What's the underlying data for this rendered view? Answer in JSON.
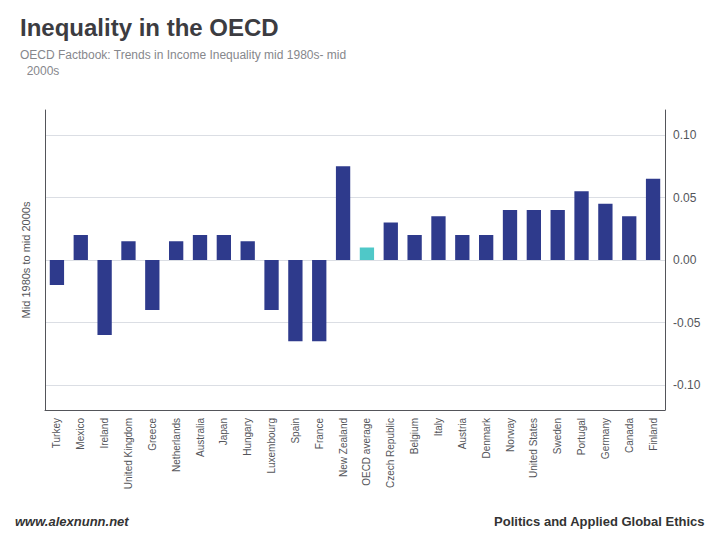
{
  "chart_data": {
    "type": "bar",
    "title": "Inequality in the OECD",
    "subtitle": "OECD Factbook: Trends in Income Inequality mid 1980s- mid\n  2000s",
    "ylabel": "Mid 1980s to mid 2000s",
    "categories": [
      "Turkey",
      "Mexico",
      "Ireland",
      "United Kingdom",
      "Greece",
      "Netherlands",
      "Australia",
      "Japan",
      "Hungary",
      "Luxembourg",
      "Spain",
      "France",
      "New Zealand",
      "OECD average",
      "Czech Republic",
      "Belgium",
      "Italy",
      "Austria",
      "Denmark",
      "Norway",
      "United States",
      "Sweden",
      "Portugal",
      "Germany",
      "Canada",
      "Finland"
    ],
    "values": [
      -0.02,
      0.02,
      -0.06,
      0.015,
      -0.04,
      0.015,
      0.02,
      0.02,
      0.015,
      -0.04,
      -0.065,
      -0.065,
      0.075,
      0.01,
      0.03,
      0.02,
      0.035,
      0.02,
      0.02,
      0.04,
      0.04,
      0.04,
      0.055,
      0.045,
      0.035,
      0.065
    ],
    "colors": [
      "#2e3a8c",
      "#2e3a8c",
      "#2e3a8c",
      "#2e3a8c",
      "#2e3a8c",
      "#2e3a8c",
      "#2e3a8c",
      "#2e3a8c",
      "#2e3a8c",
      "#2e3a8c",
      "#2e3a8c",
      "#2e3a8c",
      "#2e3a8c",
      "#4fc8c8",
      "#2e3a8c",
      "#2e3a8c",
      "#2e3a8c",
      "#2e3a8c",
      "#2e3a8c",
      "#2e3a8c",
      "#2e3a8c",
      "#2e3a8c",
      "#2e3a8c",
      "#2e3a8c",
      "#2e3a8c",
      "#2e3a8c"
    ],
    "ylim": [
      -0.12,
      0.12
    ],
    "yticks": [
      {
        "value": -0.1,
        "label": "-0.10"
      },
      {
        "value": -0.05,
        "label": "-0.05"
      },
      {
        "value": 0.0,
        "label": "0.00"
      },
      {
        "value": 0.05,
        "label": "0.05"
      },
      {
        "value": 0.1,
        "label": "0.10"
      }
    ],
    "grid": true,
    "annotations": [
      "www.alexnunn.net",
      "Politics and Applied Global Ethics"
    ]
  }
}
